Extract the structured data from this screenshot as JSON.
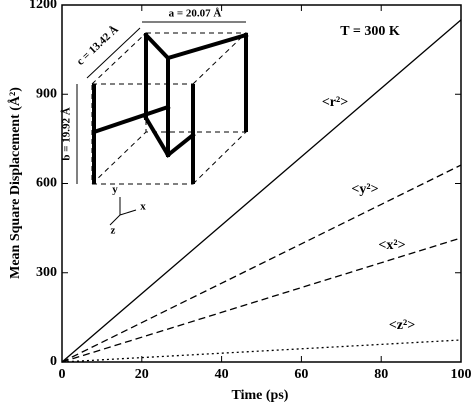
{
  "chart_data": {
    "type": "line",
    "xlabel": "Time (ps)",
    "ylabel": "Mean Square Displacement (Å²)",
    "x": [
      0,
      100
    ],
    "series": [
      {
        "name": "<r²>",
        "color": "#000000",
        "dash": "solid",
        "values": [
          0,
          1150
        ]
      },
      {
        "name": "<y²>",
        "color": "#000000",
        "dash": "dashed",
        "values": [
          0,
          662
        ]
      },
      {
        "name": "<x²>",
        "color": "#000000",
        "dash": "dashed",
        "values": [
          0,
          417
        ]
      },
      {
        "name": "<z²>",
        "color": "#000000",
        "dash": "dotted",
        "values": [
          0,
          74
        ]
      }
    ],
    "xlim": [
      0,
      100
    ],
    "xticks": [
      0,
      20,
      40,
      60,
      80,
      100
    ],
    "ylim": [
      0,
      1200
    ],
    "yticks": [
      0,
      300,
      600,
      900,
      1200
    ],
    "annotations": [
      "T = 300 K",
      "a = 20.07 Å",
      "c = 13.42 Å",
      "b = 19.92 Å",
      "y",
      "x",
      "z"
    ]
  }
}
